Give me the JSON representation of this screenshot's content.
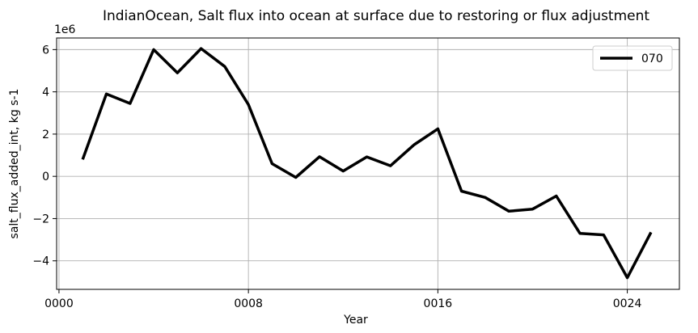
{
  "chart_data": {
    "type": "line",
    "title": "IndianOcean, Salt flux into ocean at surface due to restoring or flux adjustment",
    "xlabel": "Year",
    "ylabel": "salt_flux_added_int, kg s-1",
    "y_offset_label": "1e6",
    "xlim": [
      -0.1,
      26.2
    ],
    "ylim": [
      -5.35,
      6.55
    ],
    "y_scale_factor": 1000000,
    "xticks": [
      0,
      8,
      16,
      24
    ],
    "xtick_labels": [
      "0000",
      "0008",
      "0016",
      "0024"
    ],
    "yticks": [
      -4,
      -2,
      0,
      2,
      4,
      6
    ],
    "ytick_labels": [
      "−4",
      "−2",
      "0",
      "2",
      "4",
      "6"
    ],
    "grid": true,
    "legend_position": "top-right",
    "series": [
      {
        "name": "070",
        "color": "#000000",
        "x": [
          1,
          2,
          3,
          4,
          5,
          6,
          7,
          8,
          9,
          10,
          11,
          12,
          13,
          14,
          15,
          16,
          17,
          18,
          19,
          20,
          21,
          22,
          23,
          24,
          25
        ],
        "y": [
          0.8,
          3.9,
          3.45,
          6.0,
          4.9,
          6.05,
          5.2,
          3.4,
          0.6,
          -0.05,
          0.93,
          0.25,
          0.92,
          0.5,
          1.5,
          2.25,
          -0.7,
          -1.0,
          -1.65,
          -1.55,
          -0.93,
          -2.7,
          -2.77,
          -4.8,
          -2.65
        ]
      }
    ]
  }
}
